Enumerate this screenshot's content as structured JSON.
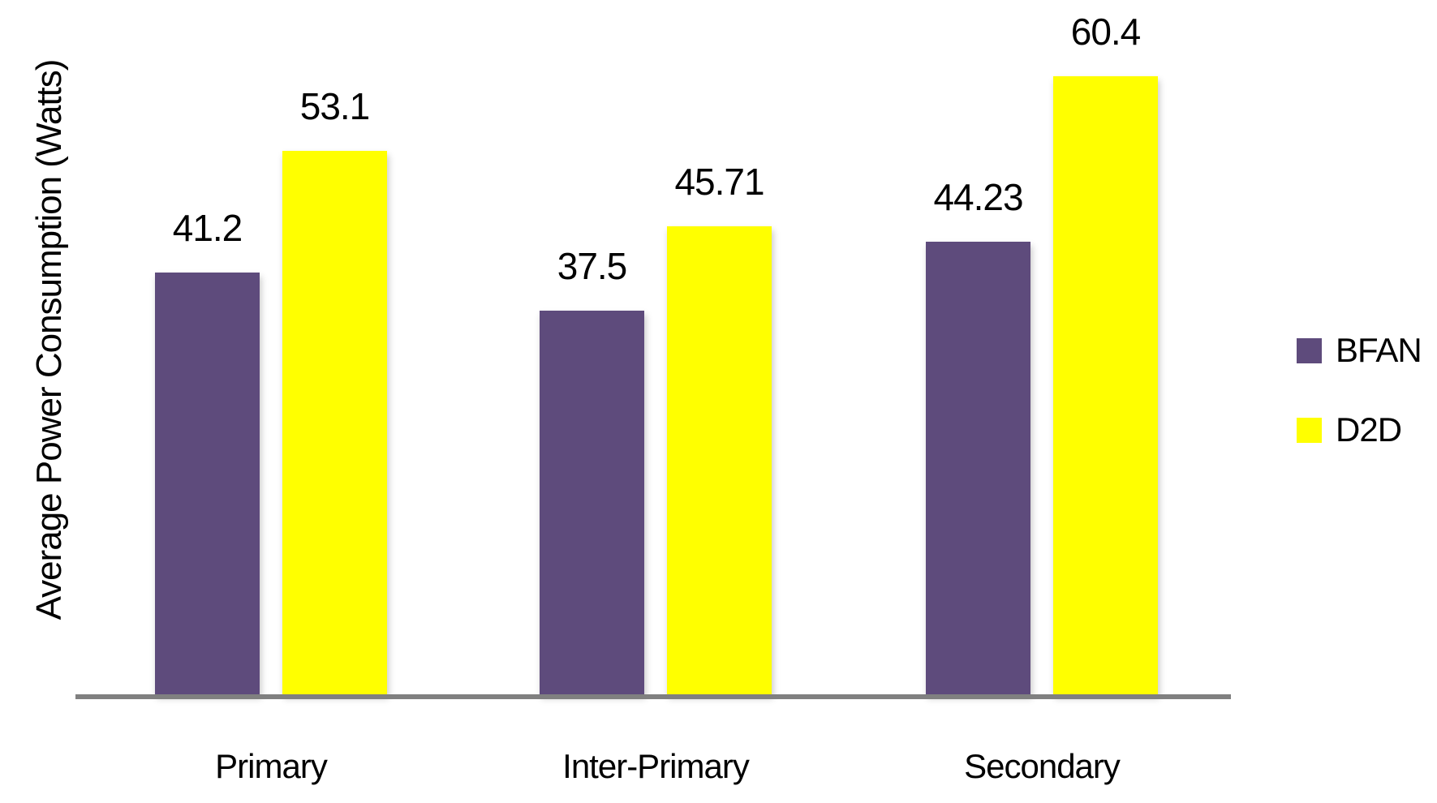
{
  "chart_data": {
    "type": "bar",
    "title": "",
    "xlabel": "",
    "ylabel": "Average Power Consumption  (Watts)",
    "categories": [
      "Primary",
      "Inter-Primary",
      "Secondary"
    ],
    "series": [
      {
        "name": "BFAN",
        "color": "#5E4B7C",
        "values": [
          41.2,
          37.5,
          44.23
        ]
      },
      {
        "name": "D2D",
        "color": "#FFFF00",
        "values": [
          53.1,
          45.71,
          60.4
        ]
      }
    ],
    "ylim": [
      0,
      70
    ],
    "grid": false,
    "legend_position": "right",
    "axis_line_color": "#808080",
    "data_labels_shown": true
  }
}
